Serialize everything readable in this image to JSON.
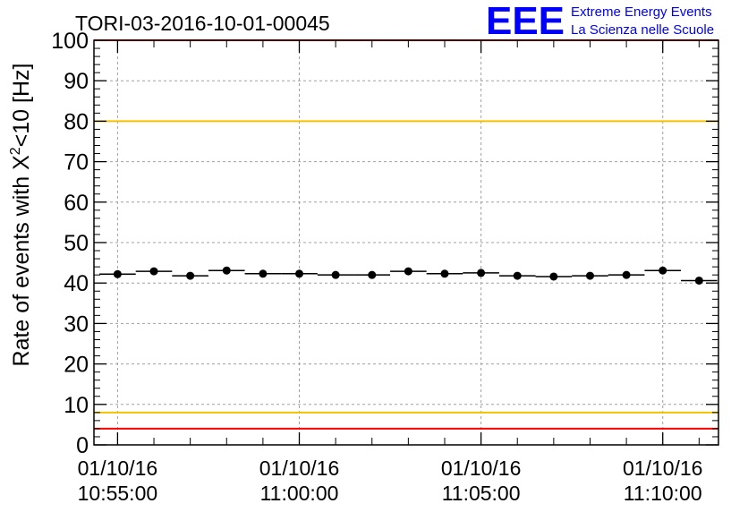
{
  "chart_data": {
    "type": "scatter",
    "title": "TORI-03-2016-10-01-00045",
    "ylabel_main": "Rate of events with X",
    "ylabel_sup": "2",
    "ylabel_tail": "<10 [Hz]",
    "xlabel": "",
    "ylim": [
      0,
      100
    ],
    "yticks": [
      "0",
      "10",
      "20",
      "30",
      "40",
      "50",
      "60",
      "70",
      "80",
      "90",
      "100"
    ],
    "xticks": [
      {
        "date": "01/10/16",
        "time": "10:55:00",
        "t": 0
      },
      {
        "date": "01/10/16",
        "time": "11:00:00",
        "t": 300
      },
      {
        "date": "01/10/16",
        "time": "11:05:00",
        "t": 600
      },
      {
        "date": "01/10/16",
        "time": "11:10:00",
        "t": 900
      }
    ],
    "grid": true,
    "series": [
      {
        "points": [
          {
            "t": 0,
            "y": 42.2
          },
          {
            "t": 60,
            "y": 42.9
          },
          {
            "t": 120,
            "y": 41.8
          },
          {
            "t": 180,
            "y": 43.1
          },
          {
            "t": 240,
            "y": 42.3
          },
          {
            "t": 300,
            "y": 42.3
          },
          {
            "t": 360,
            "y": 42.0
          },
          {
            "t": 420,
            "y": 42.0
          },
          {
            "t": 480,
            "y": 42.9
          },
          {
            "t": 540,
            "y": 42.3
          },
          {
            "t": 600,
            "y": 42.5
          },
          {
            "t": 660,
            "y": 41.8
          },
          {
            "t": 720,
            "y": 41.6
          },
          {
            "t": 780,
            "y": 41.8
          },
          {
            "t": 840,
            "y": 42.0
          },
          {
            "t": 900,
            "y": 43.1
          },
          {
            "t": 960,
            "y": 40.6
          }
        ],
        "bin_width": 60
      }
    ],
    "reference_lines": [
      {
        "y": 100,
        "color": "#ff0000"
      },
      {
        "y": 80,
        "color": "#f2c200"
      },
      {
        "y": 8,
        "color": "#f2c200"
      },
      {
        "y": 4,
        "color": "#ff0000"
      }
    ]
  },
  "logo": {
    "letters": "EEE",
    "line1": "Extreme Energy Events",
    "line2": "La Scienza nelle Scuole",
    "color": "#0000ff"
  }
}
